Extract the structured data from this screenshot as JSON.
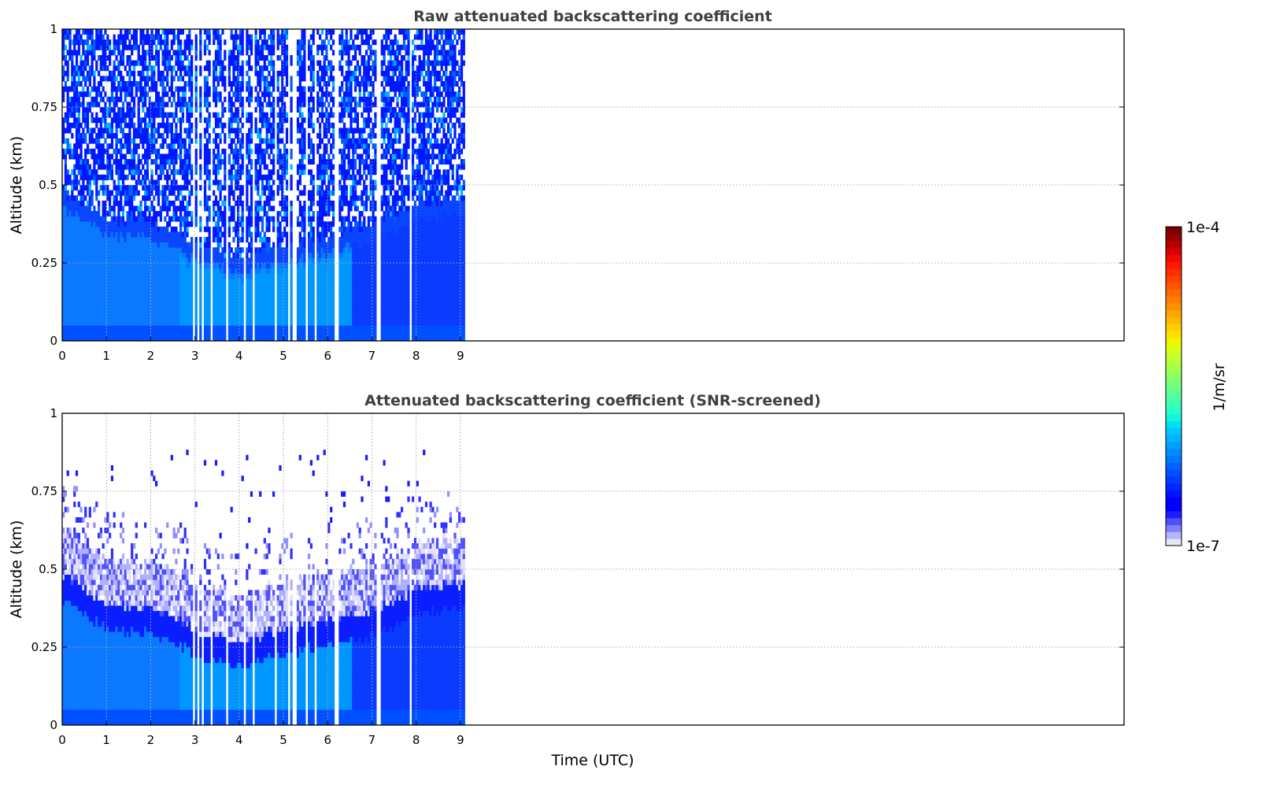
{
  "chart_data": [
    {
      "type": "heatmap",
      "title": "Raw attenuated backscattering coefficient",
      "xlabel": "",
      "ylabel": "Altitude (km)",
      "xlim": [
        0,
        24
      ],
      "ylim": [
        0,
        1
      ],
      "xticks": [
        "0",
        "1",
        "2",
        "3",
        "4",
        "5",
        "6",
        "7",
        "8",
        "9"
      ],
      "yticks": [
        "0",
        "0.25",
        "0.5",
        "0.75",
        "1"
      ],
      "screened": false
    },
    {
      "type": "heatmap",
      "title": "Attenuated backscattering coefficient (SNR-screened)",
      "xlabel": "Time (UTC)",
      "ylabel": "Altitude (km)",
      "xlim": [
        0,
        24
      ],
      "ylim": [
        0,
        1
      ],
      "xticks": [
        "0",
        "1",
        "2",
        "3",
        "4",
        "5",
        "6",
        "7",
        "8",
        "9"
      ],
      "yticks": [
        "0",
        "0.25",
        "0.5",
        "0.75",
        "1"
      ],
      "screened": true
    }
  ],
  "data_extent_hours": [
    0,
    9.1
  ],
  "data_gap_hours": [
    7.05,
    7.18
  ],
  "boundary_layer_top_km": {
    "hours": [
      0,
      1,
      2,
      3,
      4,
      5,
      6,
      7,
      8,
      9.1
    ],
    "values": [
      0.47,
      0.38,
      0.37,
      0.3,
      0.26,
      0.3,
      0.33,
      0.36,
      0.43,
      0.45
    ]
  },
  "colorbar": {
    "label": "1/m/sr",
    "min_label": "1e-7",
    "max_label": "1e-4",
    "scale": "log",
    "colormap": "jet (white-lavender low end)"
  }
}
